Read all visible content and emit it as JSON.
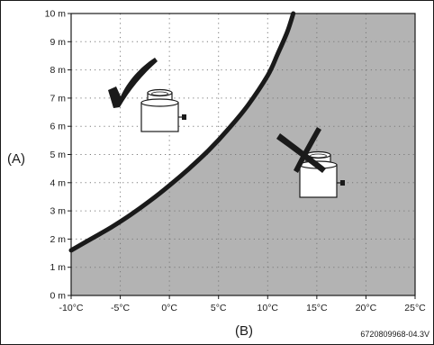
{
  "chart_data": {
    "type": "area",
    "title": "",
    "xlabel": "(B)",
    "ylabel": "(A)",
    "x_ticks": [
      "-10°C",
      "-5°C",
      "0°C",
      "5°C",
      "10°C",
      "15°C",
      "20°C",
      "25°C"
    ],
    "y_ticks": [
      "0 m",
      "1 m",
      "2 m",
      "3 m",
      "4 m",
      "5 m",
      "6 m",
      "7 m",
      "8 m",
      "9 m",
      "10 m"
    ],
    "xlim": [
      -10,
      25
    ],
    "ylim": [
      0,
      10
    ],
    "grid": "dotted",
    "series": [
      {
        "x": [
          -10,
          -8,
          -6,
          -4,
          -2,
          0,
          2,
          4,
          6,
          8,
          10,
          11,
          12,
          12.6
        ],
        "y": [
          1.6,
          2.0,
          2.4,
          2.85,
          3.35,
          3.9,
          4.5,
          5.15,
          5.9,
          6.75,
          7.8,
          8.55,
          9.35,
          10
        ]
      }
    ],
    "regions": {
      "below_curve": "allowed",
      "above_curve": "not allowed",
      "shaded": "above_curve"
    },
    "annotation": "6720809968-04.3V"
  },
  "colors": {
    "shade": "#b3b3b3",
    "curve": "#1a1a1a",
    "grid": "#7a7a7a"
  },
  "icons": {
    "allowed": "check-mark-icon",
    "not_allowed": "cross-mark-icon",
    "unit": "flue-terminal-icon"
  }
}
